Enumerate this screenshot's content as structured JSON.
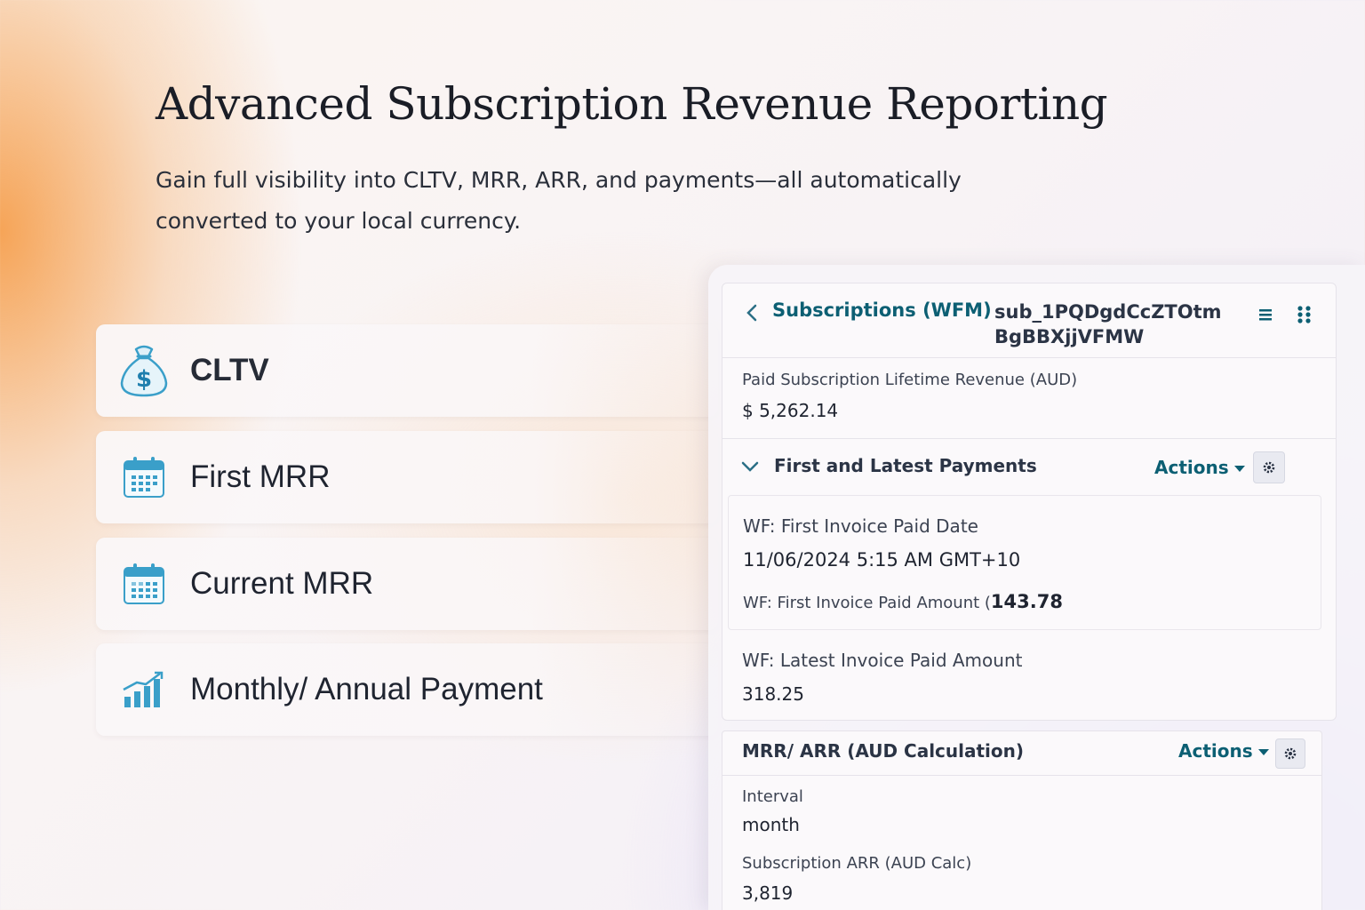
{
  "hero": {
    "title": "Advanced Subscription Revenue Reporting",
    "subtitle": "Gain full visibility into CLTV, MRR, ARR, and payments—all automatically converted to your local currency."
  },
  "features": [
    {
      "label": "CLTV",
      "icon": "money-bag-icon"
    },
    {
      "label": "First MRR",
      "icon": "calendar-icon"
    },
    {
      "label": "Current MRR",
      "icon": "calendar-icon"
    },
    {
      "label": "Monthly/ Annual Payment",
      "icon": "bar-chart-icon"
    }
  ],
  "record": {
    "breadcrumb": "Subscriptions (WFM)",
    "id": "sub_1PQDgdCcZTOtmBgBBXjjVFMW",
    "lifetime_label": "Paid Subscription Lifetime Revenue (AUD)",
    "lifetime_value": "$ 5,262.14",
    "payments_section": {
      "title": "First and Latest Payments",
      "actions": "Actions",
      "first_date_label": "WF: First Invoice Paid Date",
      "first_date_value": "11/06/2024 5:15 AM GMT+10",
      "first_amount_label": "WF: First Invoice Paid Amount (",
      "first_amount_value": "143.78",
      "latest_amount_label": "WF: Latest Invoice Paid Amount",
      "latest_amount_value": "318.25"
    },
    "mrr_section": {
      "title": "MRR/ ARR (AUD Calculation)",
      "actions": "Actions",
      "interval_label": "Interval",
      "interval_value": "month",
      "arr_label": "Subscription ARR (AUD Calc)",
      "arr_value": "3,819"
    }
  },
  "colors": {
    "accent": "#0c5f73",
    "icon_blue": "#3a9fc9",
    "text_dark": "#1f2430"
  }
}
